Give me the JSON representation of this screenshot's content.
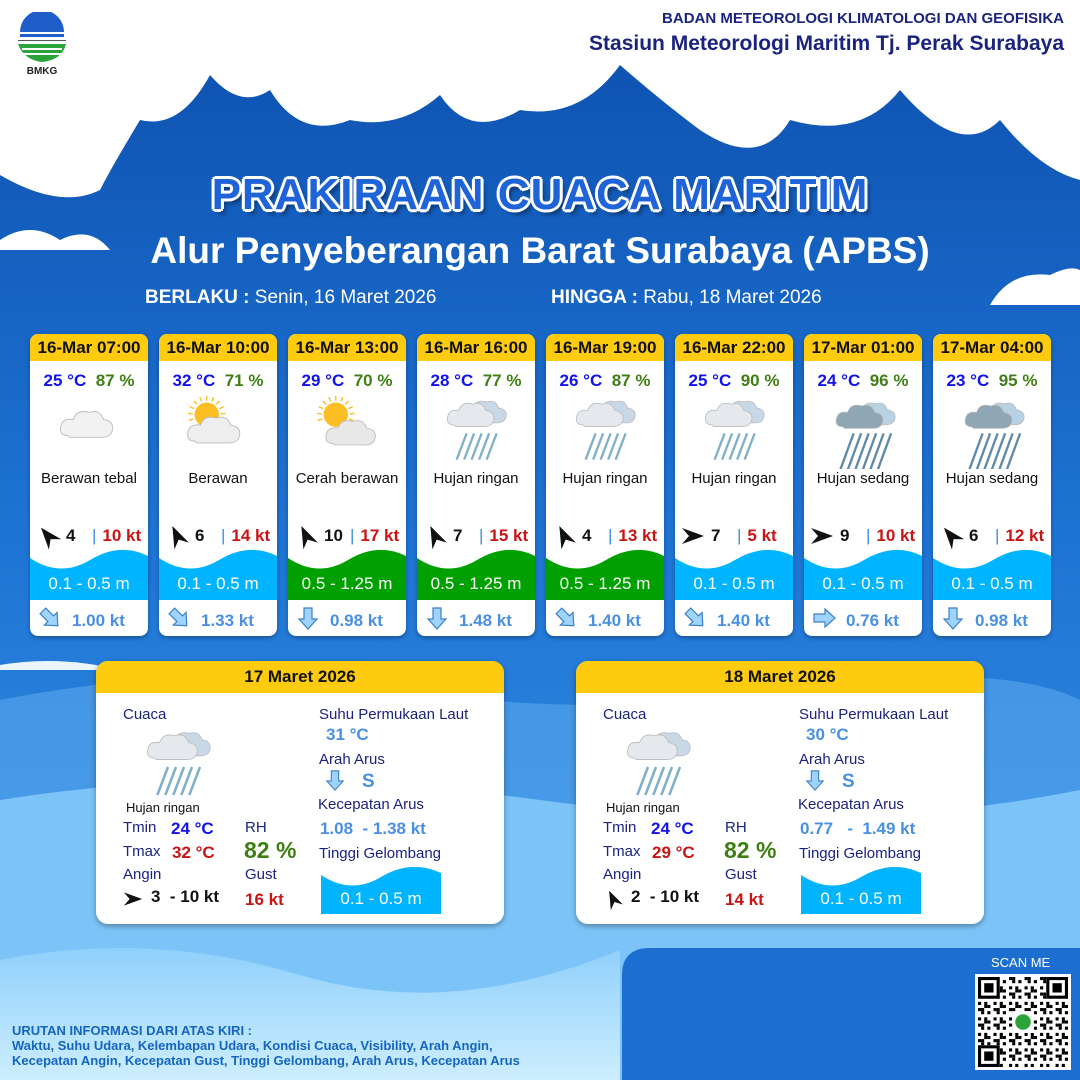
{
  "header": {
    "org": "BADAN METEOROLOGI KLIMATOLOGI DAN GEOFISIKA",
    "station": "Stasiun Meteorologi Maritim Tj. Perak Surabaya",
    "logo_text": "BMKG"
  },
  "title": "PRAKIRAAN CUACA MARITIM",
  "subtitle": "Alur Penyeberangan Barat Surabaya (APBS)",
  "validity": {
    "from_label": "BERLAKU :",
    "from": "Senin, 16 Maret 2026",
    "to_label": "HINGGA :",
    "to": "Rabu, 18 Maret 2026"
  },
  "colors": {
    "header_yellow": "#fecb0e",
    "wave_low": "#00b4ff",
    "wave_mid": "#00a000",
    "temp": "#1212ee",
    "rh": "#3f7f14",
    "gust": "#c81414",
    "current": "#4a90e2"
  },
  "forecasts": [
    {
      "time": "16-Mar 07:00",
      "temp": "25 °C",
      "rh": "87 %",
      "icon": "cloudy",
      "condition": "Berawan tebal",
      "wind_arrow_deg": -40,
      "wind": "4",
      "gust": "10 kt",
      "wave": "0.1 - 0.5 m",
      "wave_level": "low",
      "current_icon": "arrow-down-right",
      "current": "1.00 kt"
    },
    {
      "time": "16-Mar 10:00",
      "temp": "32 °C",
      "rh": "71 %",
      "icon": "partly-cloudy",
      "condition": "Berawan",
      "wind_arrow_deg": -25,
      "wind": "6",
      "gust": "14 kt",
      "wave": "0.1 - 0.5 m",
      "wave_level": "low",
      "current_icon": "arrow-down-right",
      "current": "1.33 kt"
    },
    {
      "time": "16-Mar 13:00",
      "temp": "29 °C",
      "rh": "70 %",
      "icon": "sunny-cloudy",
      "condition": "Cerah berawan",
      "wind_arrow_deg": -25,
      "wind": "10",
      "gust": "17 kt",
      "wave": "0.5 - 1.25 m",
      "wave_level": "mid",
      "current_icon": "arrow-down",
      "current": "0.98 kt"
    },
    {
      "time": "16-Mar 16:00",
      "temp": "28 °C",
      "rh": "77 %",
      "icon": "light-rain",
      "condition": "Hujan ringan",
      "wind_arrow_deg": -25,
      "wind": "7",
      "gust": "15 kt",
      "wave": "0.5 - 1.25 m",
      "wave_level": "mid",
      "current_icon": "arrow-down",
      "current": "1.48 kt"
    },
    {
      "time": "16-Mar 19:00",
      "temp": "26 °C",
      "rh": "87 %",
      "icon": "light-rain",
      "condition": "Hujan ringan",
      "wind_arrow_deg": -25,
      "wind": "4",
      "gust": "13 kt",
      "wave": "0.5 - 1.25 m",
      "wave_level": "mid",
      "current_icon": "arrow-down-right",
      "current": "1.40 kt"
    },
    {
      "time": "16-Mar 22:00",
      "temp": "25 °C",
      "rh": "90 %",
      "icon": "light-rain",
      "condition": "Hujan ringan",
      "wind_arrow_deg": 90,
      "wind": "7",
      "gust": "5 kt",
      "wave": "0.1 - 0.5 m",
      "wave_level": "low",
      "current_icon": "arrow-down-right",
      "current": "1.40 kt"
    },
    {
      "time": "17-Mar 01:00",
      "temp": "24 °C",
      "rh": "96 %",
      "icon": "moderate-rain",
      "condition": "Hujan sedang",
      "wind_arrow_deg": 90,
      "wind": "9",
      "gust": "10 kt",
      "wave": "0.1 - 0.5 m",
      "wave_level": "low",
      "current_icon": "arrow-right",
      "current": "0.76 kt"
    },
    {
      "time": "17-Mar 04:00",
      "temp": "23 °C",
      "rh": "95 %",
      "icon": "moderate-rain",
      "condition": "Hujan sedang",
      "wind_arrow_deg": -40,
      "wind": "6",
      "gust": "12 kt",
      "wave": "0.1 - 0.5 m",
      "wave_level": "low",
      "current_icon": "arrow-down",
      "current": "0.98 kt"
    }
  ],
  "labels": {
    "weather": "Cuaca",
    "sst": "Suhu Permukaan Laut",
    "current_dir": "Arah Arus",
    "current_speed": "Kecepatan Arus",
    "wave": "Tinggi Gelombang",
    "tmin": "Tmin",
    "tmax": "Tmax",
    "rh": "RH",
    "wind": "Angin",
    "gust": "Gust"
  },
  "daily": [
    {
      "date": "17 Maret 2026",
      "icon": "light-rain",
      "condition": "Hujan ringan",
      "tmin": "24 °C",
      "tmax": "32 °C",
      "rh": "82 %",
      "wind_arrow_deg": 90,
      "wind": "3  - 10 kt",
      "gust": "16 kt",
      "sst": "31 °C",
      "current_dir": "S",
      "current_speed": "1.08  - 1.38 kt",
      "wave": "0.1 - 0.5 m"
    },
    {
      "date": "18 Maret 2026",
      "icon": "light-rain",
      "condition": "Hujan ringan",
      "tmin": "24 °C",
      "tmax": "29 °C",
      "rh": "82 %",
      "wind_arrow_deg": -25,
      "wind": "2  - 10 kt",
      "gust": "14 kt",
      "sst": "30 °C",
      "current_dir": "S",
      "current_speed": "0.77   -  1.49 kt",
      "wave": "0.1 - 0.5 m"
    }
  ],
  "footer": {
    "heading": "URUTAN INFORMASI DARI ATAS KIRI :",
    "line1": "Waktu, Suhu Udara, Kelembapan Udara, Kondisi Cuaca, Visibility, Arah Angin,",
    "line2": "Kecepatan Angin, Kecepatan Gust, Tinggi Gelombang, Arah Arus, Kecepatan Arus"
  },
  "qr": {
    "label": "SCAN ME"
  }
}
